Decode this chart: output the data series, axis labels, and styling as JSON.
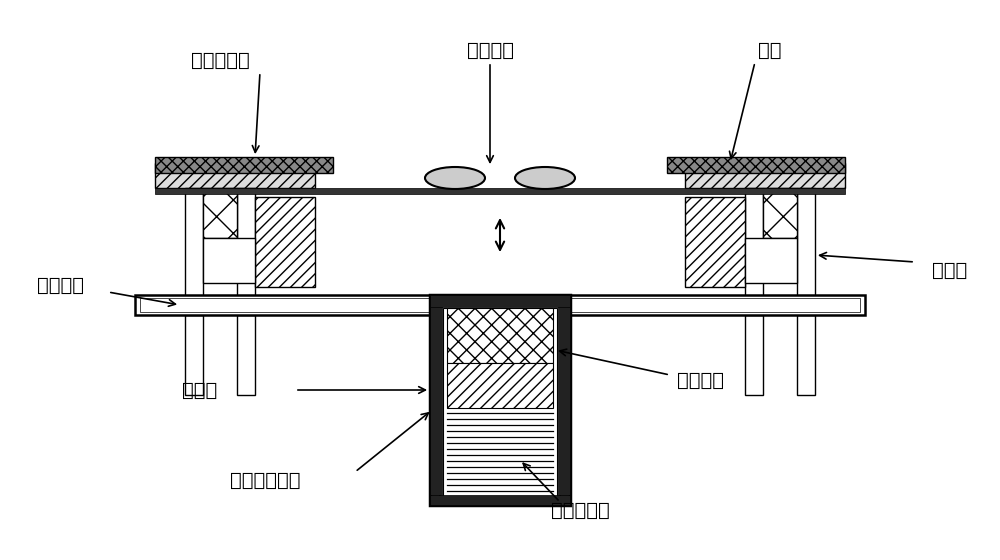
{
  "bg_color": "#ffffff",
  "line_color": "#000000",
  "labels": {
    "zhen_kong_qiang_fa_lan": "真空腔法兰",
    "deng_li_zi_ti": "等离子体",
    "ba_cai": "靶材",
    "jue_yuan_ti": "绝缘体",
    "shui_leng_bei_ban": "水冷背板",
    "ruan_tie_yoke": "软铁轭",
    "zhi_leng_ji_zhen_kong_qiang": "制冷机真空腔",
    "chao_dao_ci_ti": "超导磁体",
    "zhi_leng_ji_leng_tou": "制冷机冷头"
  }
}
